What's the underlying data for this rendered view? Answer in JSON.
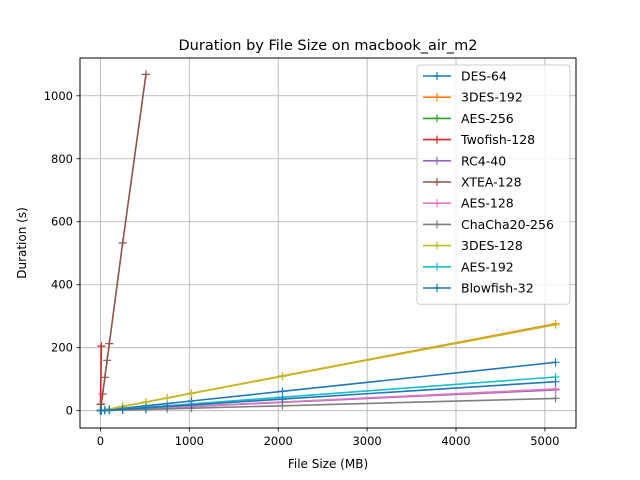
{
  "chart_data": {
    "type": "line",
    "title": "Duration by File Size on macbook_air_m2",
    "xlabel": "File Size (MB)",
    "ylabel": "Duration (s)",
    "xlim": [
      -230,
      5350
    ],
    "ylim": [
      -55,
      1120
    ],
    "xticks": [
      0,
      1000,
      2000,
      3000,
      4000,
      5000
    ],
    "yticks": [
      0,
      200,
      400,
      600,
      800,
      1000
    ],
    "grid": true,
    "legend_position": "upper-right",
    "series": [
      {
        "name": "DES-64",
        "color": "#1f77b4",
        "x": [
          1,
          10,
          50,
          100,
          250,
          512,
          750,
          1024,
          2048,
          5120
        ],
        "y": [
          0.03,
          0.3,
          1.5,
          3,
          7.5,
          15.4,
          22.5,
          30.7,
          61.4,
          153.6
        ]
      },
      {
        "name": "3DES-192",
        "color": "#ff7f0e",
        "x": [
          1,
          10,
          50,
          100,
          250,
          512,
          750,
          1024,
          2048,
          5120
        ],
        "y": [
          0.05,
          0.5,
          2.7,
          5.4,
          13.5,
          27.6,
          40.4,
          55.2,
          110.4,
          276
        ]
      },
      {
        "name": "AES-256",
        "color": "#2ca02c",
        "x": [
          1,
          10,
          50,
          100,
          250,
          512,
          750,
          1024,
          2048,
          5120
        ],
        "y": [
          0.01,
          0.1,
          0.7,
          1.3,
          3.3,
          6.8,
          10,
          13.6,
          27.2,
          68
        ]
      },
      {
        "name": "Twofish-128",
        "color": "#d62728",
        "x": [
          1,
          10
        ],
        "y": [
          20,
          205
        ]
      },
      {
        "name": "RC4-40",
        "color": "#9467bd",
        "x": [
          1,
          10,
          50,
          100,
          250,
          512,
          750,
          1024,
          2048,
          5120
        ],
        "y": [
          0.01,
          0.1,
          0.7,
          1.3,
          3.2,
          6.6,
          9.7,
          13.2,
          26.4,
          66
        ]
      },
      {
        "name": "XTEA-128",
        "color": "#8c564b",
        "x": [
          1,
          10,
          25,
          50,
          75,
          100,
          250,
          512
        ],
        "y": [
          2,
          21,
          53,
          106,
          160,
          213,
          533,
          1068
        ]
      },
      {
        "name": "AES-128",
        "color": "#e377c2",
        "x": [
          1,
          10,
          50,
          100,
          250,
          512,
          750,
          1024,
          2048,
          5120
        ],
        "y": [
          0.01,
          0.1,
          0.7,
          1.4,
          3.4,
          6.9,
          10.1,
          13.8,
          27.6,
          69
        ]
      },
      {
        "name": "ChaCha20-256",
        "color": "#7f7f7f",
        "x": [
          1,
          10,
          50,
          100,
          250,
          512,
          750,
          1024,
          2048,
          5120
        ],
        "y": [
          0.01,
          0.08,
          0.4,
          0.8,
          1.9,
          3.9,
          5.7,
          7.8,
          15.6,
          39
        ]
      },
      {
        "name": "3DES-128",
        "color": "#bcbd22",
        "x": [
          1,
          10,
          50,
          100,
          250,
          512,
          750,
          1024,
          2048,
          5120
        ],
        "y": [
          0.05,
          0.5,
          2.7,
          5.3,
          13.3,
          27.3,
          40,
          54.6,
          109.2,
          273
        ]
      },
      {
        "name": "AES-192",
        "color": "#17becf",
        "x": [
          1,
          10,
          50,
          100,
          250,
          512,
          750,
          1024,
          2048,
          5120
        ],
        "y": [
          0.02,
          0.2,
          1.1,
          2.1,
          5.2,
          10.7,
          15.7,
          21.4,
          42.8,
          107
        ]
      },
      {
        "name": "Blowfish-32",
        "color": "#1f77b4",
        "x": [
          1,
          10,
          50,
          100,
          250,
          512,
          750,
          1024,
          2048,
          5120
        ],
        "y": [
          0.02,
          0.2,
          0.9,
          1.8,
          4.5,
          9.2,
          13.5,
          18.4,
          36.8,
          92
        ]
      }
    ]
  }
}
